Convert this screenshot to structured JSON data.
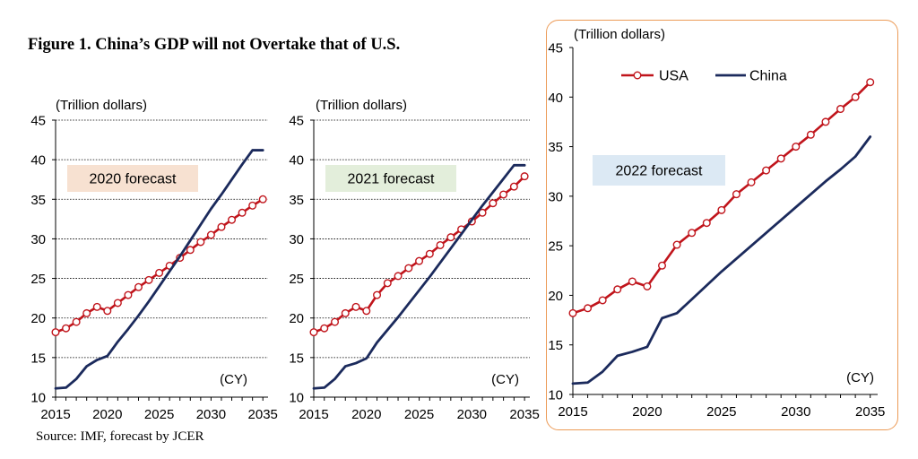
{
  "figure": {
    "title": "Figure 1. China’s GDP will not Overtake that of U.S.",
    "source": "Source: IMF, forecast by JCER"
  },
  "colors": {
    "usa": "#c0141b",
    "china": "#1b2a5c",
    "frame": "#ec9b57"
  },
  "legend": {
    "usa": "USA",
    "china": "China"
  },
  "chart_data": [
    {
      "type": "line",
      "title": "2020 forecast",
      "box_color": "#f7e1d1",
      "ylabel": "(Trillion dollars)",
      "xlabel": "(CY)",
      "ylim": [
        10,
        45
      ],
      "yticks": [
        10,
        15,
        20,
        25,
        30,
        35,
        40,
        45
      ],
      "xlim": [
        2015,
        2035.5
      ],
      "xticks": [
        2015,
        2020,
        2025,
        2030,
        2035
      ],
      "grid": true,
      "series": [
        {
          "name": "USA",
          "marker": "circle",
          "x": [
            2015,
            2016,
            2017,
            2018,
            2019,
            2020,
            2021,
            2022,
            2023,
            2024,
            2025,
            2026,
            2027,
            2028,
            2029,
            2030,
            2031,
            2032,
            2033,
            2034,
            2035
          ],
          "values": [
            18.2,
            18.7,
            19.5,
            20.6,
            21.4,
            20.9,
            21.9,
            22.9,
            23.9,
            24.8,
            25.7,
            26.6,
            27.6,
            28.6,
            29.6,
            30.5,
            31.5,
            32.4,
            33.3,
            34.2,
            35.0
          ]
        },
        {
          "name": "China",
          "marker": "none",
          "x": [
            2015,
            2016,
            2017,
            2018,
            2019,
            2020,
            2021,
            2022,
            2023,
            2024,
            2025,
            2026,
            2027,
            2028,
            2029,
            2030,
            2031,
            2032,
            2033,
            2034,
            2035
          ],
          "values": [
            11.1,
            11.2,
            12.3,
            13.9,
            14.7,
            15.2,
            17.0,
            18.6,
            20.3,
            22.1,
            24.0,
            25.9,
            27.8,
            29.8,
            31.8,
            33.8,
            35.6,
            37.5,
            39.4,
            41.2,
            41.2
          ]
        }
      ]
    },
    {
      "type": "line",
      "title": "2021 forecast",
      "box_color": "#e3eedb",
      "ylabel": "(Trillion dollars)",
      "xlabel": "(CY)",
      "ylim": [
        10,
        45
      ],
      "yticks": [
        10,
        15,
        20,
        25,
        30,
        35,
        40,
        45
      ],
      "xlim": [
        2015,
        2035.5
      ],
      "xticks": [
        2015,
        2020,
        2025,
        2030,
        2035
      ],
      "grid": true,
      "series": [
        {
          "name": "USA",
          "marker": "circle",
          "x": [
            2015,
            2016,
            2017,
            2018,
            2019,
            2020,
            2021,
            2022,
            2023,
            2024,
            2025,
            2026,
            2027,
            2028,
            2029,
            2030,
            2031,
            2032,
            2033,
            2034,
            2035
          ],
          "values": [
            18.2,
            18.7,
            19.5,
            20.6,
            21.4,
            20.9,
            22.9,
            24.4,
            25.3,
            26.3,
            27.2,
            28.1,
            29.2,
            30.2,
            31.2,
            32.2,
            33.3,
            34.5,
            35.6,
            36.6,
            37.9
          ]
        },
        {
          "name": "China",
          "marker": "none",
          "x": [
            2015,
            2016,
            2017,
            2018,
            2019,
            2020,
            2021,
            2022,
            2023,
            2024,
            2025,
            2026,
            2027,
            2028,
            2029,
            2030,
            2031,
            2032,
            2033,
            2034,
            2035
          ],
          "values": [
            11.1,
            11.2,
            12.3,
            13.9,
            14.3,
            14.9,
            16.9,
            18.5,
            20.1,
            21.8,
            23.5,
            25.2,
            27.0,
            28.8,
            30.6,
            32.4,
            34.2,
            35.9,
            37.6,
            39.3,
            39.3
          ]
        }
      ]
    },
    {
      "type": "line",
      "title": "2022 forecast",
      "box_color": "#dce9f4",
      "ylabel": "(Trillion dollars)",
      "xlabel": "(CY)",
      "ylim": [
        10,
        45
      ],
      "yticks": [
        10,
        15,
        20,
        25,
        30,
        35,
        40,
        45
      ],
      "xlim": [
        2015,
        2035.5
      ],
      "xticks": [
        2015,
        2020,
        2025,
        2030,
        2035
      ],
      "grid": false,
      "legend": "top-left",
      "series": [
        {
          "name": "USA",
          "marker": "circle",
          "x": [
            2015,
            2016,
            2017,
            2018,
            2019,
            2020,
            2021,
            2022,
            2023,
            2024,
            2025,
            2026,
            2027,
            2028,
            2029,
            2030,
            2031,
            2032,
            2033,
            2034,
            2035
          ],
          "values": [
            18.2,
            18.7,
            19.5,
            20.6,
            21.4,
            20.9,
            23.0,
            25.1,
            26.3,
            27.3,
            28.6,
            30.2,
            31.4,
            32.6,
            33.8,
            35.0,
            36.2,
            37.5,
            38.8,
            40.0,
            41.5
          ]
        },
        {
          "name": "China",
          "marker": "none",
          "x": [
            2015,
            2016,
            2017,
            2018,
            2019,
            2020,
            2021,
            2022,
            2023,
            2024,
            2025,
            2026,
            2027,
            2028,
            2029,
            2030,
            2031,
            2032,
            2033,
            2034,
            2035
          ],
          "values": [
            11.1,
            11.2,
            12.3,
            13.9,
            14.3,
            14.8,
            17.7,
            18.2,
            19.6,
            21.0,
            22.4,
            23.7,
            25.0,
            26.3,
            27.6,
            28.9,
            30.2,
            31.5,
            32.7,
            34.0,
            36.0
          ]
        }
      ]
    }
  ]
}
